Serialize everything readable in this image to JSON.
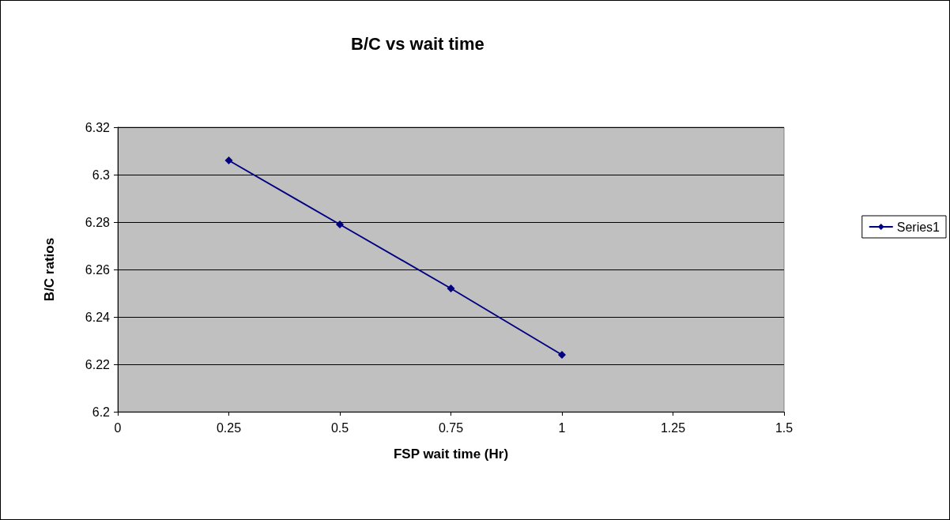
{
  "chart_data": {
    "type": "line",
    "title": "B/C vs wait time",
    "xlabel": "FSP wait time (Hr)",
    "ylabel": "B/C ratios",
    "x": [
      0.25,
      0.5,
      0.75,
      1
    ],
    "series": [
      {
        "name": "Series1",
        "color": "#000080",
        "values": [
          6.306,
          6.279,
          6.252,
          6.224
        ]
      }
    ],
    "xlim": [
      0,
      1.5
    ],
    "xticks": [
      0,
      0.25,
      0.5,
      0.75,
      1,
      1.25,
      1.5
    ],
    "ylim": [
      6.2,
      6.32
    ],
    "yticks": [
      6.2,
      6.22,
      6.24,
      6.26,
      6.28,
      6.3,
      6.32
    ],
    "grid": "y",
    "legend": "right",
    "marker": "diamond",
    "line_style": "solid"
  }
}
